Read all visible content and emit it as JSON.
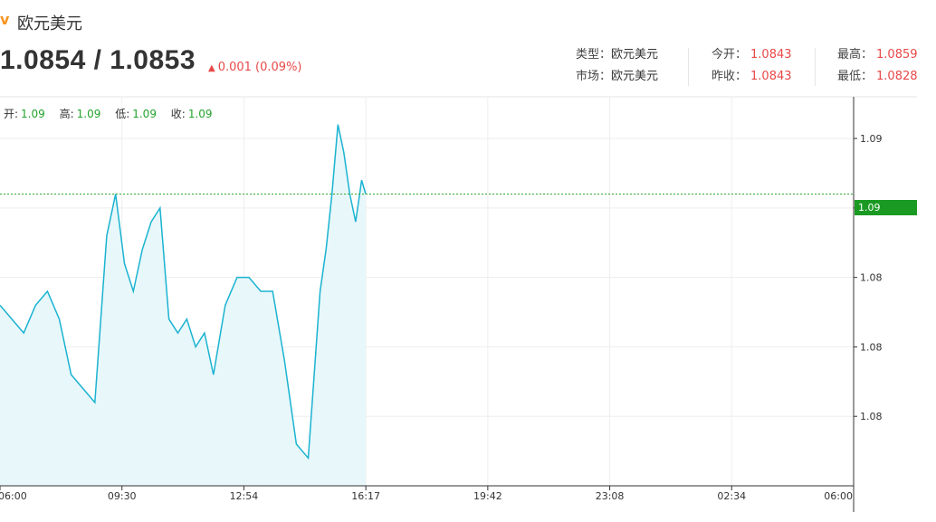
{
  "header": {
    "icon": "chart-trend-icon",
    "icon_glyph": "v",
    "title": "欧元美元",
    "price": "1.0854 / 1.0853",
    "change": "0.001 (0.09%)"
  },
  "stats": [
    {
      "label": "类型：",
      "value": "欧元美元",
      "colored": false
    },
    {
      "label": "市场：",
      "value": "欧元美元",
      "colored": false
    },
    {
      "label": "今开：",
      "value": "1.0843",
      "colored": true
    },
    {
      "label": "昨收：",
      "value": "1.0843",
      "colored": true
    },
    {
      "label": "最高：",
      "value": "1.0859",
      "colored": true
    },
    {
      "label": "最低：",
      "value": "1.0828",
      "colored": true
    }
  ],
  "ohlc": [
    {
      "label": "开:",
      "value": "1.09"
    },
    {
      "label": "高:",
      "value": "1.09"
    },
    {
      "label": "低:",
      "value": "1.09"
    },
    {
      "label": "收:",
      "value": "1.09"
    }
  ],
  "colors": {
    "line": "#1ab3d1",
    "fill": "#e8f7fa",
    "up": "#e84848",
    "green": "#1a9a22"
  },
  "chart_data": {
    "type": "area",
    "x_tick_labels": [
      "06:00",
      "09:30",
      "12:54",
      "16:17",
      "19:42",
      "23:08",
      "02:34",
      "06:00"
    ],
    "y_tick_labels": [
      "1.09",
      "1.09",
      "1.08",
      "1.08",
      "1.08"
    ],
    "y_ticks": [
      1.0857,
      1.0852,
      1.0847,
      1.0842,
      1.0837
    ],
    "ylim": [
      1.0832,
      1.086
    ],
    "reference_line": 1.0853,
    "last_value_label": "1.09",
    "x": [
      "06:00",
      "06:20",
      "06:40",
      "07:00",
      "07:20",
      "07:40",
      "08:00",
      "08:20",
      "08:40",
      "09:00",
      "09:15",
      "09:30",
      "09:45",
      "10:00",
      "10:15",
      "10:30",
      "10:45",
      "11:00",
      "11:15",
      "11:30",
      "11:45",
      "12:00",
      "12:20",
      "12:40",
      "13:00",
      "13:20",
      "13:40",
      "14:00",
      "14:20",
      "14:40",
      "14:50",
      "15:00",
      "15:10",
      "15:20",
      "15:30",
      "15:40",
      "15:50",
      "16:00",
      "16:10",
      "16:17"
    ],
    "values": [
      1.0845,
      1.0844,
      1.0843,
      1.0845,
      1.0846,
      1.0844,
      1.084,
      1.0839,
      1.0838,
      1.085,
      1.0853,
      1.0848,
      1.0846,
      1.0849,
      1.0851,
      1.0852,
      1.0844,
      1.0843,
      1.0844,
      1.0842,
      1.0843,
      1.084,
      1.0845,
      1.0847,
      1.0847,
      1.0846,
      1.0846,
      1.0841,
      1.0835,
      1.0834,
      1.084,
      1.0846,
      1.0849,
      1.0853,
      1.0858,
      1.0856,
      1.0853,
      1.0851,
      1.0854,
      1.0853
    ]
  }
}
